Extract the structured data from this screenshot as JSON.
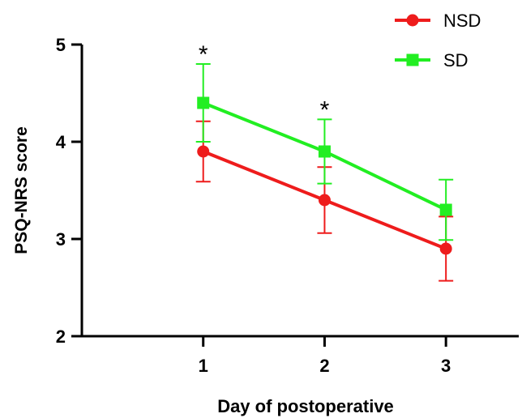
{
  "chart_data": {
    "type": "line",
    "title": "",
    "xlabel": "Day of postoperative",
    "ylabel": "PSQ-NRS score",
    "x": [
      1,
      2,
      3
    ],
    "x_tick_labels": [
      "1",
      "2",
      "3"
    ],
    "xlim": [
      0,
      3.6
    ],
    "ylim": [
      2,
      5
    ],
    "y_ticks": [
      2,
      3,
      4,
      5
    ],
    "y_tick_labels": [
      "2",
      "3",
      "4",
      "5"
    ],
    "grid": false,
    "legend_position": "top-right",
    "series": [
      {
        "name": "NSD",
        "color": "#ee1c1c",
        "marker": "circle",
        "values": [
          3.9,
          3.4,
          2.9
        ],
        "error": [
          0.31,
          0.34,
          0.33
        ]
      },
      {
        "name": "SD",
        "color": "#22ee22",
        "marker": "square",
        "values": [
          4.4,
          3.9,
          3.3
        ],
        "error": [
          0.4,
          0.33,
          0.31
        ]
      }
    ],
    "annotations": [
      {
        "x": 1,
        "text": "*"
      },
      {
        "x": 2,
        "text": "*"
      }
    ]
  }
}
